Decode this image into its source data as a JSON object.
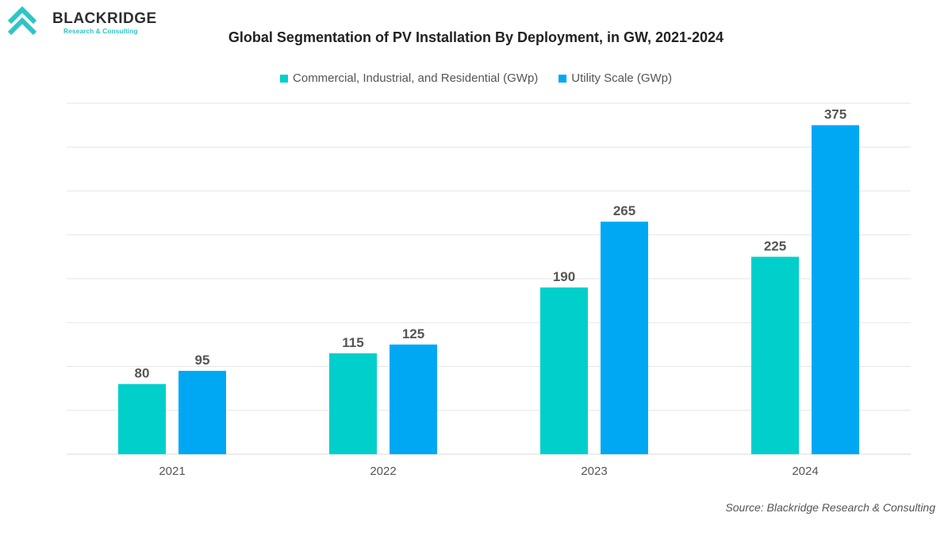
{
  "logo": {
    "name": "BLACKRIDGE",
    "tagline": "Research & Consulting"
  },
  "colors": {
    "commercial": "#00cfcc",
    "utility": "#00a8f3",
    "grid": "#e6e6e6",
    "label": "#555555"
  },
  "chart_data": {
    "type": "bar",
    "title": "Global Segmentation of PV Installation By Deployment, in GW, 2021-2024",
    "categories": [
      "2021",
      "2022",
      "2023",
      "2024"
    ],
    "series": [
      {
        "name": "Commercial, Industrial, and Residential (GWp)",
        "values": [
          80,
          115,
          190,
          225
        ]
      },
      {
        "name": "Utility Scale (GWp)",
        "values": [
          95,
          125,
          265,
          375
        ]
      }
    ],
    "ylim": [
      0,
      400
    ],
    "grid": true,
    "grid_step": 50,
    "legend": "top-center",
    "xlabel": "",
    "ylabel": ""
  },
  "source": "Source: Blackridge Research & Consulting"
}
